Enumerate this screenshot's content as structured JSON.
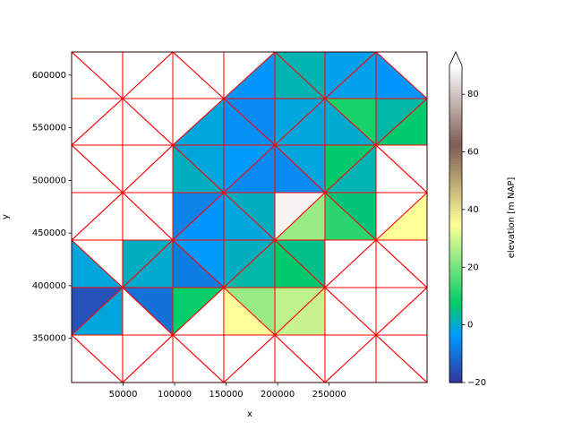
{
  "chart_data": {
    "type": "tripcolor",
    "xlabel": "x",
    "ylabel": "y",
    "xlim": [
      0,
      345000
    ],
    "ylim": [
      308000,
      622000
    ],
    "xticks": [
      50000,
      100000,
      150000,
      200000,
      250000
    ],
    "yticks": [
      350000,
      400000,
      450000,
      500000,
      550000,
      600000
    ],
    "x_nodes": [
      0,
      49500,
      98200,
      147700,
      197300,
      245900,
      295500,
      345000
    ],
    "y_nodes": [
      622000,
      577700,
      533500,
      488400,
      443300,
      398200,
      353100,
      308000
    ],
    "edgecolor": "#ff0000",
    "values": [
      [
        [
          null,
          null
        ],
        [
          null,
          null
        ],
        [
          null,
          null
        ],
        [
          null,
          -4
        ],
        [
          2,
          2
        ],
        [
          -2,
          -2
        ],
        [
          null,
          -4
        ]
      ],
      [
        [
          null,
          null
        ],
        [
          null,
          null
        ],
        [
          null,
          -1
        ],
        [
          -6,
          -5
        ],
        [
          -1,
          -1
        ],
        [
          10,
          0
        ],
        [
          3,
          7
        ]
      ],
      [
        [
          null,
          null
        ],
        [
          null,
          null
        ],
        [
          -1,
          1
        ],
        [
          -3,
          -6
        ],
        [
          -1,
          -6
        ],
        [
          7,
          2
        ],
        [
          null,
          null
        ]
      ],
      [
        [
          null,
          null
        ],
        [
          null,
          null
        ],
        [
          -7,
          -4
        ],
        [
          1,
          -1
        ],
        [
          88,
          24
        ],
        [
          6,
          12
        ],
        [
          null,
          35
        ]
      ],
      [
        [
          null,
          -1
        ],
        [
          1,
          0
        ],
        [
          -3,
          -8
        ],
        [
          1,
          3
        ],
        [
          5,
          7
        ],
        [
          null,
          null
        ],
        [
          null,
          null
        ]
      ],
      [
        [
          -15,
          -1
        ],
        [
          -10,
          null
        ],
        [
          8,
          null
        ],
        [
          24,
          35
        ],
        [
          28,
          29
        ],
        [
          null,
          null
        ],
        [
          null,
          null
        ]
      ],
      [
        [
          null,
          null
        ],
        [
          null,
          null
        ],
        [
          null,
          null
        ],
        [
          null,
          null
        ],
        [
          null,
          null
        ],
        [
          null,
          null
        ],
        [
          null,
          null
        ]
      ]
    ],
    "colorbar": {
      "label": "elevation [m NAP]",
      "cmap": "terrain",
      "lim": [
        -20,
        90
      ],
      "ticks": [
        {
          "value": -20,
          "label": "−20"
        },
        0,
        20,
        40,
        60,
        80
      ],
      "extend": "max"
    }
  }
}
